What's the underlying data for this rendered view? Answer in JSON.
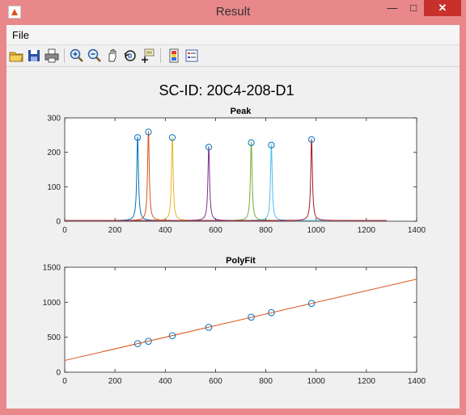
{
  "window": {
    "title": "Result"
  },
  "menu": {
    "file": "File"
  },
  "toolbar": {
    "icons": [
      "open-folder-icon",
      "save-icon",
      "print-icon",
      "zoom-in-icon",
      "zoom-out-icon",
      "pan-hand-icon",
      "rotate-3d-icon",
      "data-cursor-icon",
      "colorbar-icon",
      "legend-icon"
    ]
  },
  "figure": {
    "suptitle": "SC-ID: 20C4-208-D1"
  },
  "chart_data": [
    {
      "type": "line",
      "title": "Peak",
      "xlabel": "",
      "ylabel": "",
      "xlim": [
        0,
        1400
      ],
      "ylim": [
        0,
        300
      ],
      "xticks": [
        0,
        200,
        400,
        600,
        800,
        1000,
        1200,
        1400
      ],
      "yticks": [
        0,
        100,
        200,
        300
      ],
      "markers": {
        "x": [
          290,
          333,
          428,
          573,
          742,
          822,
          982
        ],
        "y": [
          243,
          259,
          243,
          215,
          228,
          221,
          237
        ]
      },
      "series": [
        {
          "color": "#0072bd",
          "peak_x": 290,
          "peak_y": 243
        },
        {
          "color": "#d95319",
          "peak_x": 333,
          "peak_y": 259
        },
        {
          "color": "#edb120",
          "peak_x": 428,
          "peak_y": 243
        },
        {
          "color": "#7e2f8e",
          "peak_x": 573,
          "peak_y": 215
        },
        {
          "color": "#77ac30",
          "peak_x": 742,
          "peak_y": 228
        },
        {
          "color": "#4dbeee",
          "peak_x": 822,
          "peak_y": 221
        },
        {
          "color": "#a2142f",
          "peak_x": 982,
          "peak_y": 237
        }
      ],
      "grid": false
    },
    {
      "type": "scatter",
      "title": "PolyFit",
      "xlabel": "",
      "ylabel": "",
      "xlim": [
        0,
        1400
      ],
      "ylim": [
        0,
        1500
      ],
      "xticks": [
        0,
        200,
        400,
        600,
        800,
        1000,
        1200,
        1400
      ],
      "yticks": [
        0,
        500,
        1000,
        1500
      ],
      "points": {
        "x": [
          290,
          333,
          428,
          573,
          742,
          822,
          982
        ],
        "y": [
          408,
          442,
          522,
          641,
          787,
          852,
          983
        ]
      },
      "fit_line": {
        "x": [
          0,
          1400
        ],
        "y": [
          168,
          1330
        ]
      },
      "colors": {
        "points": "#0072bd",
        "fit": "#d95319"
      },
      "grid": false
    }
  ]
}
